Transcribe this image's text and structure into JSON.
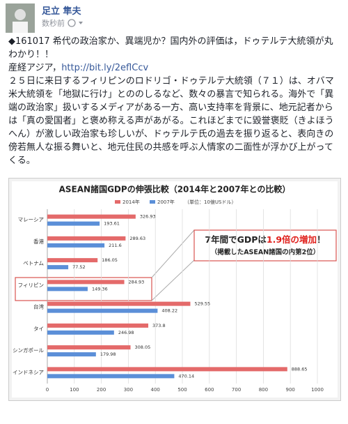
{
  "post": {
    "author": "足立 隼夫",
    "time": "数秒前",
    "headline": "◆161017 希代の政治家か、異端児か？国内外の評価は，ドゥテルテ大統領が丸わかり！！",
    "source": "産経アジア，",
    "link": "http://bit.ly/2eflCcv",
    "body": "２５日に来日するフィリピンのロドリゴ・ドゥテルテ大統領（７１）は、オバマ米大統領を「地獄に行け」とののしるなど、数々の暴言で知られる。海外で「異端の政治家」扱いするメディアがある一方、高い支持率を背景に、地元記者からは「真の愛国者」と褒め称える声があがる。これほどまでに毀誉褒貶（きよほうへん）が激しい政治家も珍しいが、ドゥテルテ氏の過去を振り返ると、表向きの傍若無人な振る舞いと、地元住民の共感を呼ぶ人情家の二面性が浮かび上がってくる。"
  },
  "chart_data": {
    "type": "bar",
    "orientation": "horizontal",
    "title": "ASEAN諸国GDPの伸張比較（2014年と2007年との比較）",
    "unit_note": "（単位：10億USドル）",
    "categories": [
      "マレーシア",
      "香港",
      "ベトナム",
      "フィリピン",
      "台湾",
      "タイ",
      "シンガポール",
      "インドネシア"
    ],
    "series": [
      {
        "name": "2014年",
        "color": "#e46a6a",
        "values": [
          326.93,
          289.63,
          186.05,
          284.93,
          529.55,
          373.8,
          308.05,
          888.65
        ]
      },
      {
        "name": "2007年",
        "color": "#5b8fd8",
        "values": [
          193.61,
          211.6,
          77.52,
          149.36,
          408.22,
          246.98,
          179.98,
          470.14
        ]
      }
    ],
    "xlim": [
      0,
      1000
    ],
    "xticks": [
      0,
      100,
      200,
      300,
      400,
      500,
      600,
      700,
      800,
      900,
      1000
    ],
    "grid": true,
    "legend": "top",
    "annotation": {
      "parts": [
        "7年間でGDPは",
        "1.9倍の増加",
        "！"
      ],
      "note": "（掲載したASEAN諸国の内第2位）"
    }
  }
}
